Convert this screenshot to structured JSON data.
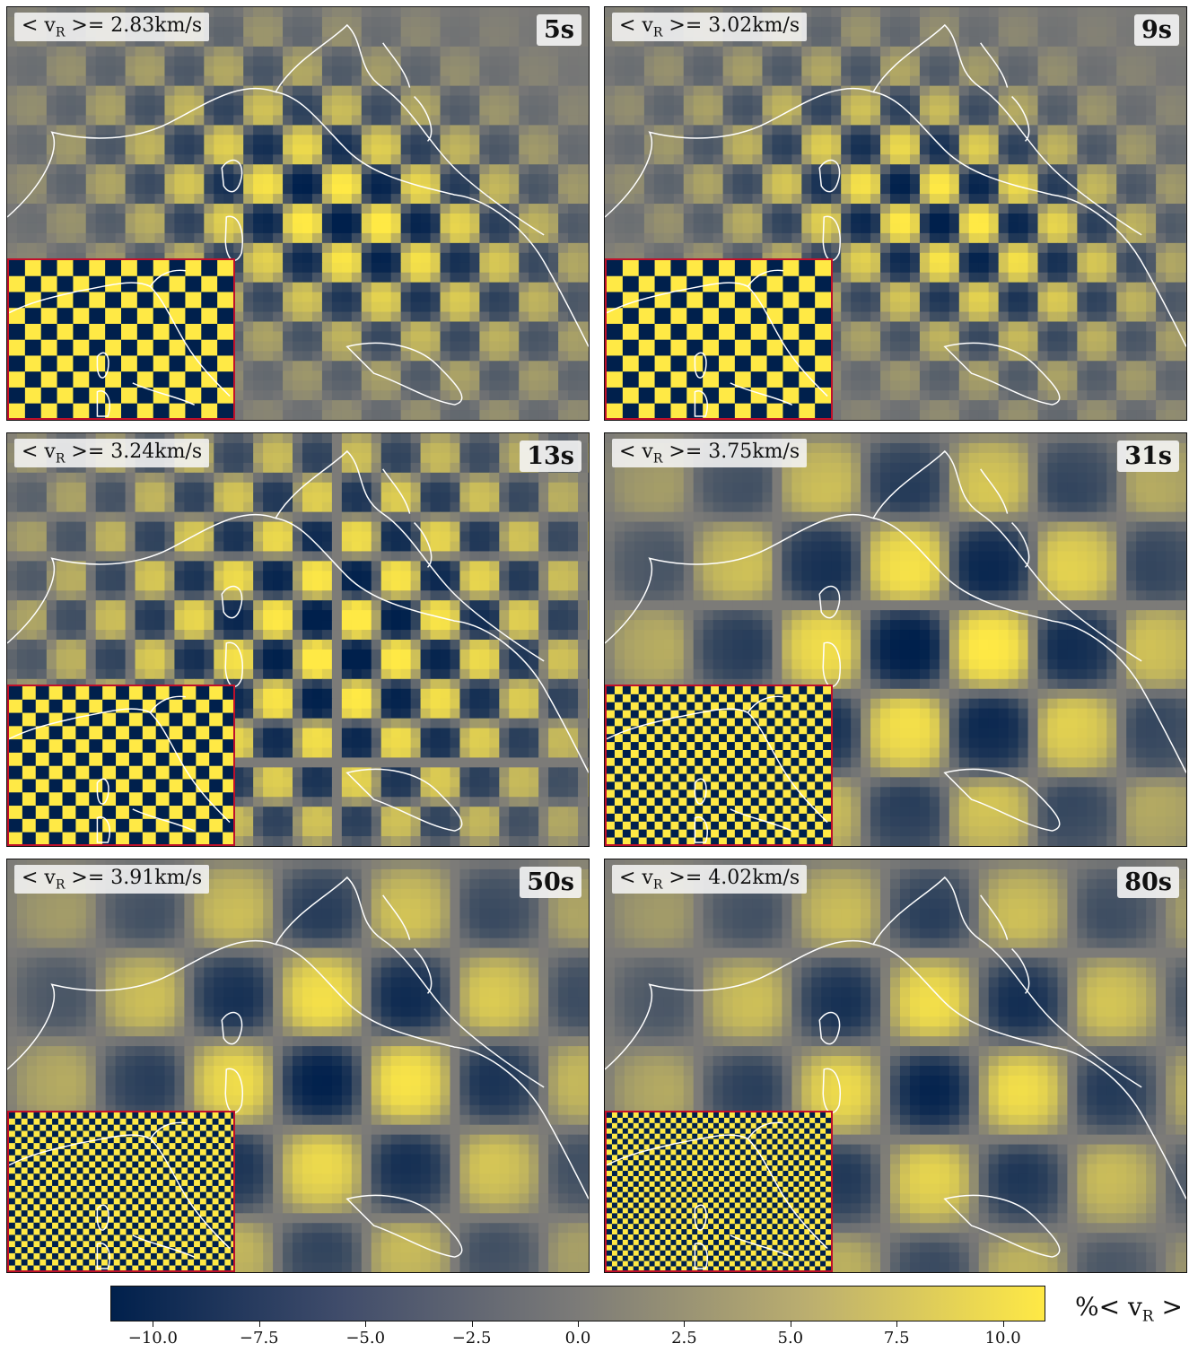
{
  "chart_data": {
    "type": "heatmap",
    "panels": [
      {
        "period_label": "5s",
        "velocity_prefix": "< v",
        "velocity_sub": "R",
        "velocity_value": ">= 2.83km/s",
        "period_s": 5,
        "mean_velocity_kms": 2.83
      },
      {
        "period_label": "9s",
        "velocity_prefix": "< v",
        "velocity_sub": "R",
        "velocity_value": ">= 3.02km/s",
        "period_s": 9,
        "mean_velocity_kms": 3.02
      },
      {
        "period_label": "13s",
        "velocity_prefix": "< v",
        "velocity_sub": "R",
        "velocity_value": ">= 3.24km/s",
        "period_s": 13,
        "mean_velocity_kms": 3.24
      },
      {
        "period_label": "31s",
        "velocity_prefix": "< v",
        "velocity_sub": "R",
        "velocity_value": ">= 3.75km/s",
        "period_s": 31,
        "mean_velocity_kms": 3.75
      },
      {
        "period_label": "50s",
        "velocity_prefix": "< v",
        "velocity_sub": "R",
        "velocity_value": ">= 3.91km/s",
        "period_s": 50,
        "mean_velocity_kms": 3.91
      },
      {
        "period_label": "80s",
        "velocity_prefix": "< v",
        "velocity_sub": "R",
        "velocity_value": ">= 4.02km/s",
        "period_s": 80,
        "mean_velocity_kms": 4.02
      }
    ],
    "colorbar": {
      "range": [
        -11,
        11
      ],
      "ticks": [
        -10.0,
        -7.5,
        -5.0,
        -2.5,
        0.0,
        2.5,
        5.0,
        7.5,
        10.0
      ],
      "tick_labels": [
        "−10.0",
        "−7.5",
        "−5.0",
        "−2.5",
        "0.0",
        "2.5",
        "5.0",
        "7.5",
        "10.0"
      ],
      "label_prefix": "%< v",
      "label_sub": "R",
      "label_suffix": " >",
      "colormap": "cividis",
      "color_low": "#00204c",
      "color_mid": "#7c7b78",
      "color_high": "#ffe945"
    },
    "inset_border_color": "#c0102a",
    "coastline_color": "#ffffff"
  }
}
